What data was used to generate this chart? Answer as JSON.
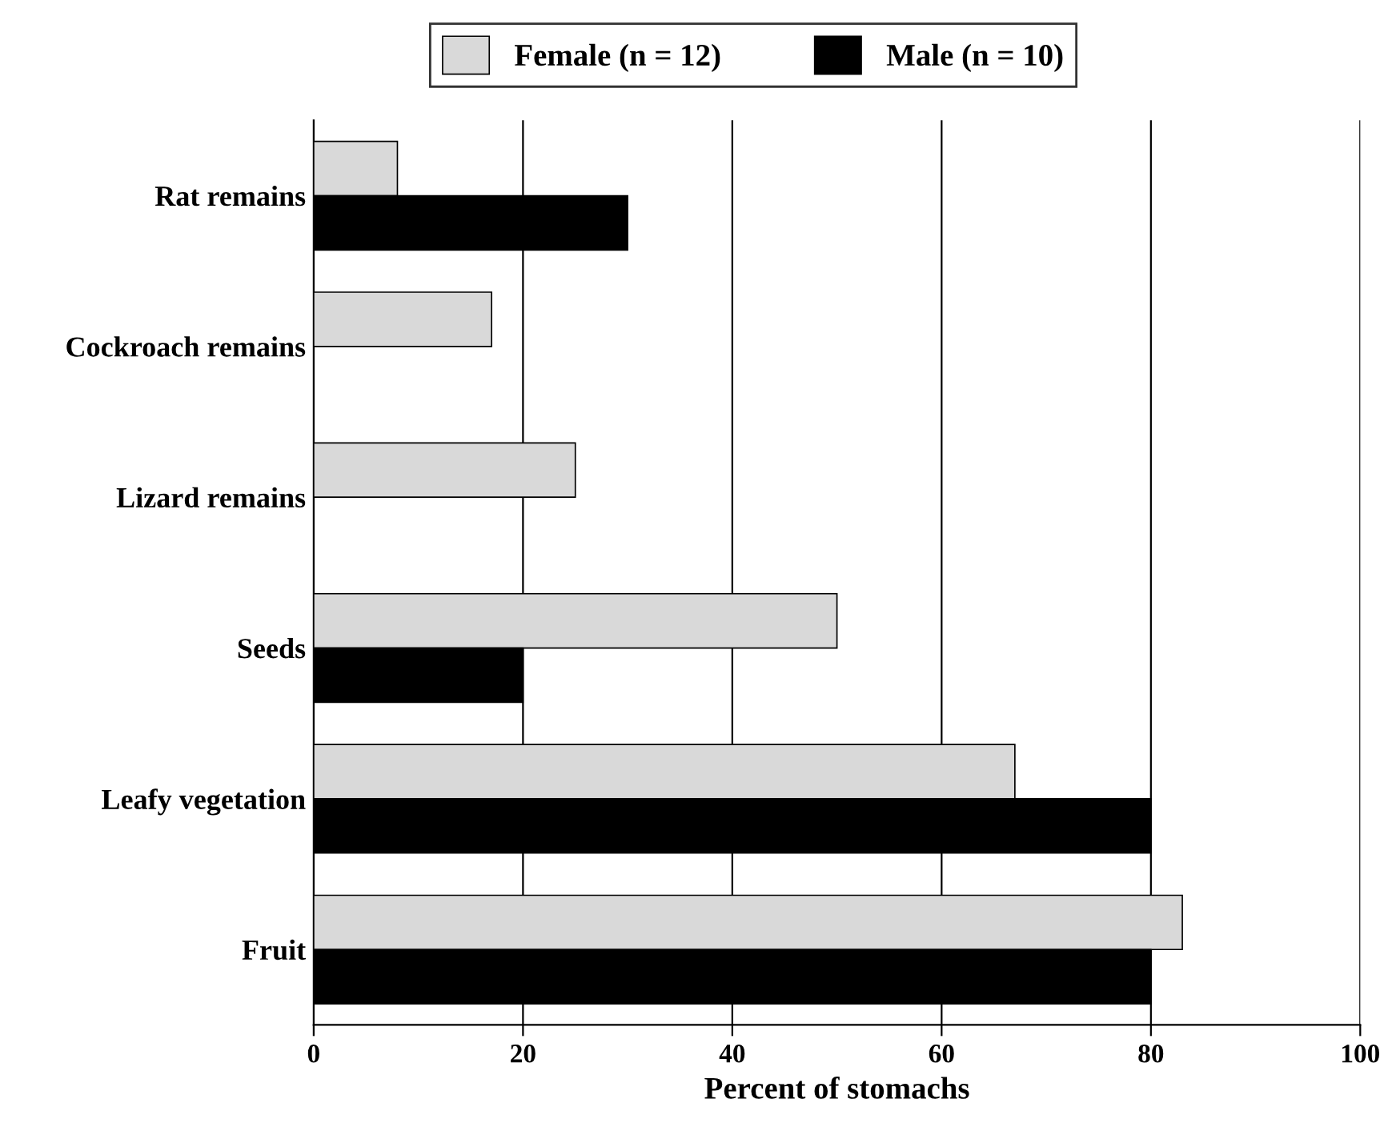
{
  "chart_data": {
    "type": "bar",
    "orientation": "horizontal",
    "xlabel": "Percent of stomachs",
    "categories": [
      "Rat remains",
      "Cockroach remains",
      "Lizard remains",
      "Seeds",
      "Leafy vegetation",
      "Fruit"
    ],
    "series": [
      {
        "name": "Female (n = 12)",
        "color": "#d9d9d9",
        "values": [
          8,
          17,
          25,
          50,
          67,
          83
        ]
      },
      {
        "name": "Male (n = 10)",
        "color": "#000000",
        "values": [
          30,
          null,
          null,
          20,
          80,
          80
        ]
      }
    ],
    "xlim": [
      0,
      100
    ],
    "xticks": [
      0,
      20,
      40,
      60,
      80,
      100
    ],
    "grid": "x",
    "legend": "top"
  }
}
